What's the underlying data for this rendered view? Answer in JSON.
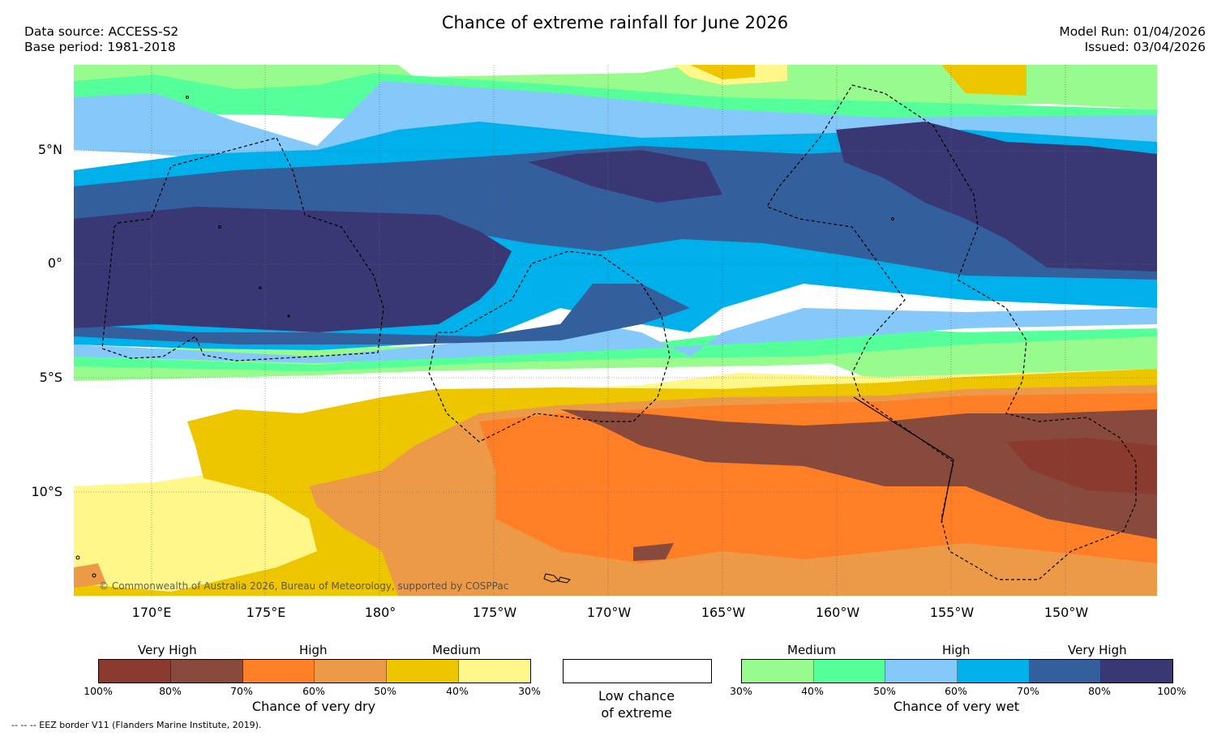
{
  "title": "Chance of extreme rainfall for June 2026",
  "meta": {
    "data_source": "Data source: ACCESS-S2",
    "base_period": "Base period: 1981-2018",
    "model_run": "Model Run: 01/04/2026",
    "issued": "Issued: 03/04/2026"
  },
  "map": {
    "lat_labels": [
      "5°N",
      "0°",
      "5°S",
      "10°S"
    ],
    "lon_labels": [
      "170°E",
      "175°E",
      "180°",
      "175°W",
      "170°W",
      "165°W",
      "160°W",
      "155°W",
      "150°W"
    ],
    "copyright": "© Commonwealth of Australia 2026, Bureau of Meteorology, supported by COSPPac"
  },
  "legend_dry": {
    "categories": [
      "Very High",
      "High",
      "Medium"
    ],
    "ticks": [
      "100%",
      "80%",
      "70%",
      "60%",
      "50%",
      "40%",
      "30%"
    ],
    "colors": [
      "#8b3a30",
      "#874a3c",
      "#ff7f27",
      "#ec9948",
      "#edc600",
      "#fff78a"
    ],
    "caption": "Chance of very dry"
  },
  "legend_low": {
    "caption_line1": "Low chance",
    "caption_line2": "of extreme",
    "color": "#ffffff"
  },
  "legend_wet": {
    "categories": [
      "Medium",
      "High",
      "Very High"
    ],
    "ticks": [
      "30%",
      "40%",
      "50%",
      "60%",
      "70%",
      "80%",
      "100%"
    ],
    "colors": [
      "#98fb8e",
      "#55ff99",
      "#85c8fa",
      "#00b0ea",
      "#335f9c",
      "#393874"
    ],
    "caption": "Chance of very wet"
  },
  "footnote": "--  --  -- EEZ border V11 (Flanders Marine Institute, 2019)."
}
